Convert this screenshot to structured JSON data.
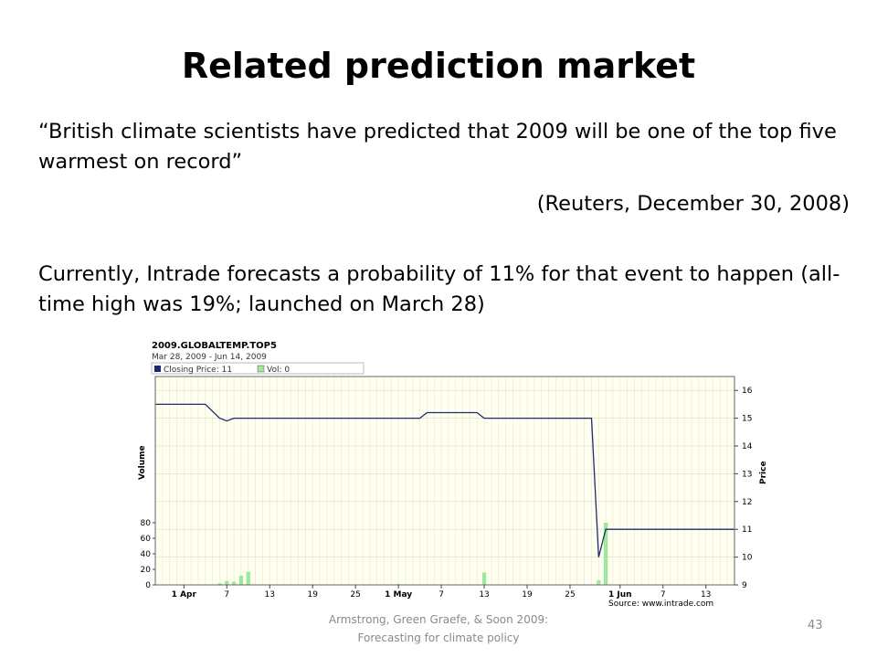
{
  "slide": {
    "title": "Related prediction market",
    "quote": "“British climate scientists have predicted that 2009 will be one of the top five warmest on record”",
    "source": "(Reuters, December 30, 2008)",
    "paragraph": "Currently, Intrade forecasts a probability of 11% for that event to happen (all-time high was 19%; launched on March 28)",
    "footer_line1": "Armstrong, Green Graefe, & Soon 2009:",
    "footer_line2": "Forecasting for climate policy",
    "page_number": "43"
  },
  "chart_data": {
    "type": "line",
    "title": "2009.GLOBALTEMP.TOP5",
    "subtitle": "Mar 28, 2009 - Jun 14, 2009",
    "legend": [
      "Closing Price: 11",
      "Vol: 0"
    ],
    "legend_placement": "top-left",
    "ylabel_left": "Volume",
    "ylabel_right": "Price",
    "price_ylim": [
      9,
      16.5
    ],
    "price_ticks": [
      9,
      10,
      11,
      12,
      13,
      14,
      15,
      16
    ],
    "volume_ylim": [
      0,
      100
    ],
    "volume_ticks": [
      0,
      20,
      40,
      60,
      80
    ],
    "x_day_range": [
      0,
      81
    ],
    "x_ticks": [
      {
        "day": 4,
        "label": "1 Apr",
        "bold": true
      },
      {
        "day": 10,
        "label": "7",
        "bold": false
      },
      {
        "day": 16,
        "label": "13",
        "bold": false
      },
      {
        "day": 22,
        "label": "19",
        "bold": false
      },
      {
        "day": 28,
        "label": "25",
        "bold": false
      },
      {
        "day": 34,
        "label": "1 May",
        "bold": true
      },
      {
        "day": 40,
        "label": "7",
        "bold": false
      },
      {
        "day": 46,
        "label": "13",
        "bold": false
      },
      {
        "day": 52,
        "label": "19",
        "bold": false
      },
      {
        "day": 58,
        "label": "25",
        "bold": false
      },
      {
        "day": 65,
        "label": "1 Jun",
        "bold": true
      },
      {
        "day": 71,
        "label": "7",
        "bold": false
      },
      {
        "day": 77,
        "label": "13",
        "bold": false
      }
    ],
    "price_series": {
      "name": "Closing Price",
      "color": "#1f2a6e",
      "points": [
        [
          0,
          15.5
        ],
        [
          7,
          15.5
        ],
        [
          9,
          15.0
        ],
        [
          10,
          14.9
        ],
        [
          11,
          15.0
        ],
        [
          37,
          15.0
        ],
        [
          38,
          15.2
        ],
        [
          45,
          15.2
        ],
        [
          46,
          15.0
        ],
        [
          61,
          15.0
        ],
        [
          62,
          10.0
        ],
        [
          63,
          11.0
        ],
        [
          81,
          11.0
        ]
      ]
    },
    "volume_series": {
      "name": "Vol",
      "color": "#9de89d",
      "bars": [
        [
          9,
          2
        ],
        [
          10,
          5
        ],
        [
          11,
          4
        ],
        [
          12,
          12
        ],
        [
          13,
          17
        ],
        [
          34,
          1
        ],
        [
          46,
          16
        ],
        [
          62,
          6
        ],
        [
          63,
          80
        ]
      ]
    },
    "source_text": "Source: www.intrade.com"
  }
}
